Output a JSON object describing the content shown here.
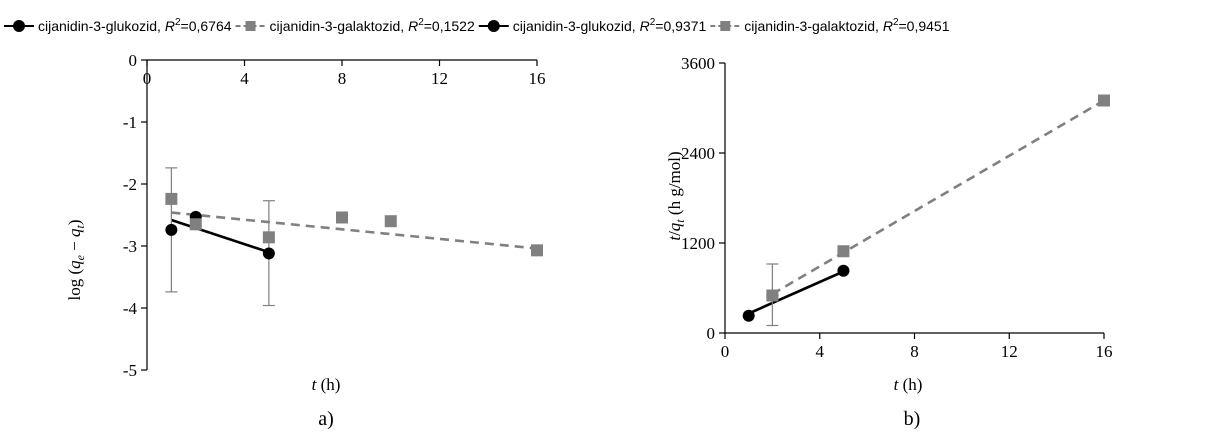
{
  "chart_data": [
    {
      "type": "scatter",
      "panel_label": "a)",
      "xlabel": "t (h)",
      "ylabel": "log (qe − qt)",
      "xlim": [
        0,
        16
      ],
      "ylim": [
        -5,
        0
      ],
      "xticks": [
        0,
        4,
        8,
        12,
        16
      ],
      "yticks": [
        0,
        -1,
        -2,
        -3,
        -4,
        -5
      ],
      "x_axis_position": "top",
      "grid": false,
      "legend": "top",
      "series": [
        {
          "name": "cijanidin-3-glukozid",
          "r2_label": "=0,6764",
          "color": "#000000",
          "marker": "circle",
          "points": [
            {
              "x": 1,
              "y": -2.74,
              "err": 0
            },
            {
              "x": 2,
              "y": -2.53,
              "err": 0
            },
            {
              "x": 5,
              "y": -3.12,
              "err": 0
            }
          ],
          "trendline": {
            "x": [
              1,
              5
            ],
            "y": [
              -2.58,
              -3.1
            ],
            "style": "solid"
          }
        },
        {
          "name": "cijanidin-3-galaktozid",
          "r2_label": "=0,1522",
          "color": "#808080",
          "marker": "square",
          "points": [
            {
              "x": 1,
              "y": -2.24,
              "err": 0.5
            },
            {
              "x": 2,
              "y": -2.65,
              "err": 0
            },
            {
              "x": 5,
              "y": -2.86,
              "err": 0
            },
            {
              "x": 8,
              "y": -2.54,
              "err": 0
            },
            {
              "x": 10,
              "y": -2.6,
              "err": 0
            },
            {
              "x": 16,
              "y": -3.07,
              "err": 0
            }
          ],
          "trendline": {
            "x": [
              1,
              16
            ],
            "y": [
              -2.46,
              -3.04
            ],
            "style": "dashed"
          },
          "error_bars": [
            {
              "x": 1,
              "low": -3.74,
              "high": -1.74
            },
            {
              "x": 5,
              "low": -3.96,
              "high": -2.27
            }
          ]
        }
      ]
    },
    {
      "type": "scatter",
      "panel_label": "b)",
      "xlabel": "t (h)",
      "ylabel": "t/qt (h g/mol)",
      "xlim": [
        0,
        16
      ],
      "ylim": [
        0,
        3600
      ],
      "xticks": [
        0,
        4,
        8,
        12,
        16
      ],
      "yticks": [
        0,
        1200,
        2400,
        3600
      ],
      "grid": false,
      "legend": "top",
      "series": [
        {
          "name": "cijanidin-3-glukozid",
          "r2_label": "=0,9371",
          "color": "#000000",
          "marker": "circle",
          "points": [
            {
              "x": 1,
              "y": 230
            },
            {
              "x": 2,
              "y": 500
            },
            {
              "x": 5,
              "y": 830
            }
          ],
          "trendline": {
            "x": [
              1,
              5
            ],
            "y": [
              260,
              820
            ],
            "style": "solid"
          }
        },
        {
          "name": "cijanidin-3-galaktozid",
          "r2_label": "=0,9451",
          "color": "#808080",
          "marker": "square",
          "points": [
            {
              "x": 2,
              "y": 500
            },
            {
              "x": 5,
              "y": 1090
            },
            {
              "x": 16,
              "y": 3100
            }
          ],
          "trendline": {
            "x": [
              2,
              16
            ],
            "y": [
              520,
              3100
            ],
            "style": "dashed"
          },
          "error_bars": [
            {
              "x": 2,
              "low": 100,
              "high": 920
            }
          ]
        }
      ]
    }
  ],
  "legend_items": [
    {
      "name": "cijanidin-3-glukozid",
      "r2_label": "=0,6764",
      "marker": "circle",
      "color": "#000000",
      "line": "solid"
    },
    {
      "name": "cijanidin-3-galaktozid",
      "r2_label": "=0,1522",
      "marker": "square",
      "color": "#808080",
      "line": "dashed"
    },
    {
      "name": "cijanidin-3-glukozid",
      "r2_label": "=0,9371",
      "marker": "circle",
      "color": "#000000",
      "line": "solid"
    },
    {
      "name": "cijanidin-3-galaktozid",
      "r2_label": "=0,9451",
      "marker": "square",
      "color": "#808080",
      "line": "dashed"
    }
  ]
}
